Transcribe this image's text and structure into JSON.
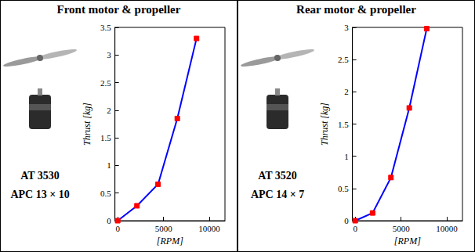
{
  "chart_data": [
    {
      "type": "line",
      "title": "Front motor & propeller",
      "annotations": [
        "AT 3530",
        "APC 13 × 10"
      ],
      "x_label": "[RPM]",
      "y_label": "Thrust [kg]",
      "series": [
        {
          "color": "#0000ff",
          "marker": "square",
          "marker_color": "#ff0000",
          "line_style": "solid",
          "x": [
            0,
            2100,
            4400,
            6500,
            8600
          ],
          "values": [
            0,
            0.27,
            0.66,
            1.85,
            3.3
          ]
        }
      ],
      "xlim": [
        -300,
        11700
      ],
      "xticks": [
        0,
        5000,
        10000
      ],
      "ylim": [
        0,
        3.5
      ],
      "yticks": [
        0,
        0.5,
        1,
        1.5,
        2,
        2.5,
        3,
        3.5
      ],
      "grid": false
    },
    {
      "type": "line",
      "title": "Rear motor & propeller",
      "annotations": [
        "AT 3520",
        "APC 14 × 7"
      ],
      "x_label": "[RPM]",
      "y_label": "Thrust [kg]",
      "series": [
        {
          "color": "#0000ff",
          "marker": "square",
          "marker_color": "#ff0000",
          "line_style": "solid",
          "x": [
            0,
            1900,
            3900,
            5900,
            7800
          ],
          "values": [
            0,
            0.12,
            0.67,
            1.75,
            2.98
          ]
        }
      ],
      "xlim": [
        -300,
        11700
      ],
      "xticks": [
        0,
        5000,
        10000
      ],
      "ylim": [
        0,
        3
      ],
      "yticks": [
        0,
        0.5,
        1,
        1.5,
        2,
        2.5,
        3
      ],
      "grid": false
    }
  ]
}
